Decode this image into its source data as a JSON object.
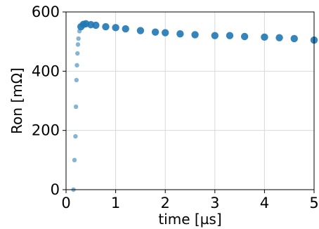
{
  "chart_data": {
    "type": "scatter",
    "title": "",
    "xlabel": "time [µs]",
    "ylabel": "Ron [mΩ]",
    "xlim": [
      0,
      5
    ],
    "ylim": [
      0,
      600
    ],
    "xticks": [
      0,
      1,
      2,
      3,
      4,
      5
    ],
    "yticks": [
      0,
      200,
      400,
      600
    ],
    "xtick_labels": [
      "0",
      "1",
      "2",
      "3",
      "4",
      "5"
    ],
    "ytick_labels": [
      "0",
      "200",
      "400",
      "600"
    ],
    "grid": true,
    "legend": "none",
    "marker_color": "#1f77b4",
    "series": [
      {
        "x": [
          0.15,
          0.17,
          0.19,
          0.2,
          0.21,
          0.22,
          0.23,
          0.24,
          0.25,
          0.27,
          0.3,
          0.35,
          0.4,
          0.5,
          0.6,
          0.8,
          1.0,
          1.2,
          1.5,
          1.8,
          2.0,
          2.3,
          2.6,
          3.0,
          3.3,
          3.6,
          4.0,
          4.3,
          4.6,
          5.0
        ],
        "y": [
          0,
          100,
          180,
          280,
          370,
          420,
          460,
          490,
          510,
          535,
          550,
          558,
          560,
          557,
          555,
          550,
          547,
          543,
          537,
          532,
          530,
          526,
          523,
          520,
          520,
          517,
          515,
          513,
          510,
          505
        ]
      }
    ]
  }
}
